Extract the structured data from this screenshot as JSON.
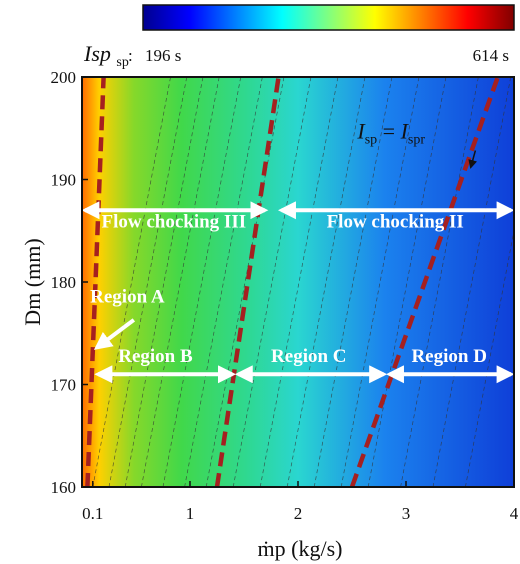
{
  "chart_data": {
    "type": "heatmap",
    "title": "",
    "xlabel": "ṁp (kg/s)",
    "ylabel": "Dm (mm)",
    "xlim": [
      0,
      4
    ],
    "ylim": [
      160,
      200
    ],
    "x_ticks": [
      {
        "value": 0.1,
        "label": "0.1"
      },
      {
        "value": 1,
        "label": "1"
      },
      {
        "value": 2,
        "label": "2"
      },
      {
        "value": 3,
        "label": "3"
      },
      {
        "value": 4,
        "label": "4"
      }
    ],
    "y_ticks": [
      {
        "value": 160,
        "label": "160"
      },
      {
        "value": 170,
        "label": "170"
      },
      {
        "value": 180,
        "label": "180"
      },
      {
        "value": 190,
        "label": "190"
      },
      {
        "value": 200,
        "label": "200"
      }
    ],
    "colorbar": {
      "variable": "Isp",
      "separator": ":",
      "min_label": "196 s",
      "max_label": "614 s",
      "min": 196,
      "max": 614,
      "colors": [
        "#00008f",
        "#0000ff",
        "#0080ff",
        "#00ffff",
        "#80ff80",
        "#ffff00",
        "#ff8000",
        "#ff0000",
        "#800000"
      ]
    },
    "color_field": {
      "colors": [
        "#0f3fd8",
        "#1b82ee",
        "#2ad6d0",
        "#2fd890",
        "#41d84a",
        "#86d82a",
        "#ffd000",
        "#ff6a00"
      ],
      "color_stops": [
        0,
        0.3,
        0.5,
        0.62,
        0.77,
        0.88,
        0.96,
        1
      ]
    },
    "boundary_lines": [
      {
        "color": "#a52020",
        "dashed": true,
        "points": [
          [
            0.05,
            160
          ],
          [
            0.2,
            200
          ]
        ]
      },
      {
        "color": "#a52020",
        "dashed": true,
        "points": [
          [
            1.25,
            160
          ],
          [
            1.82,
            200
          ]
        ]
      },
      {
        "color": "#a52020",
        "dashed": true,
        "points": [
          [
            2.5,
            160
          ],
          [
            3.85,
            200
          ]
        ]
      }
    ],
    "contour_lines": {
      "color": "#333333",
      "starts": [
        0.1,
        0.25,
        0.4,
        0.55,
        0.75,
        0.95,
        1.15,
        1.4,
        1.65,
        1.9,
        2.15,
        2.4,
        2.65,
        2.95,
        3.25,
        3.55
      ],
      "slope": 0.018
    },
    "annotations": [
      {
        "text": "Flow chocking III",
        "x": 0.85,
        "y": 185.3,
        "arrow": [
          0.0,
          187,
          1.72,
          187
        ]
      },
      {
        "text": "Flow chocking II",
        "x": 2.9,
        "y": 185.3,
        "arrow": [
          1.82,
          187,
          4.0,
          187
        ]
      },
      {
        "text": "Region A",
        "x": 0.42,
        "y": 178,
        "pointer": [
          0.48,
          176.3,
          0.1,
          173.2
        ]
      },
      {
        "text": "Region B",
        "x": 0.68,
        "y": 172.2,
        "arrow": [
          0.12,
          171,
          1.42,
          171
        ]
      },
      {
        "text": "Region C",
        "x": 2.1,
        "y": 172.2,
        "arrow": [
          1.42,
          171,
          2.82,
          171
        ]
      },
      {
        "text": "Region D",
        "x": 3.4,
        "y": 172.2,
        "arrow": [
          2.82,
          171,
          4.0,
          171
        ]
      }
    ],
    "curve_label": {
      "lhs_base": "I",
      "lhs_sub": "sp",
      "equals": " = ",
      "rhs_base": "I",
      "rhs_sub": "spr",
      "x": 2.55,
      "y": 194,
      "arrow_to": [
        3.6,
        191.2
      ]
    }
  }
}
